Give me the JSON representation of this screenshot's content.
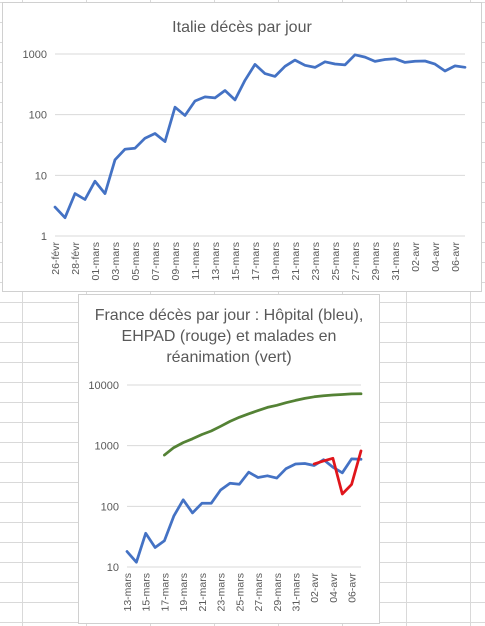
{
  "chart_data": [
    {
      "type": "line",
      "title": "Italie décès par jour",
      "yscale": "log",
      "ylim": [
        1,
        1000
      ],
      "yticks": [
        "1",
        "10",
        "100",
        "1000"
      ],
      "grid": true,
      "xtick_labels": [
        "26-févr",
        "28-févr",
        "01-mars",
        "03-mars",
        "05-mars",
        "07-mars",
        "09-mars",
        "11-mars",
        "13-mars",
        "15-mars",
        "17-mars",
        "19-mars",
        "21-mars",
        "23-mars",
        "25-mars",
        "27-mars",
        "29-mars",
        "31-mars",
        "02-avr",
        "04-avr",
        "06-avr"
      ],
      "x": [
        "26-févr",
        "27-févr",
        "28-févr",
        "29-févr",
        "01-mars",
        "02-mars",
        "03-mars",
        "04-mars",
        "05-mars",
        "06-mars",
        "07-mars",
        "08-mars",
        "09-mars",
        "10-mars",
        "11-mars",
        "12-mars",
        "13-mars",
        "14-mars",
        "15-mars",
        "16-mars",
        "17-mars",
        "18-mars",
        "19-mars",
        "20-mars",
        "21-mars",
        "22-mars",
        "23-mars",
        "24-mars",
        "25-mars",
        "26-mars",
        "27-mars",
        "28-mars",
        "29-mars",
        "30-mars",
        "31-mars",
        "01-avr",
        "02-avr",
        "03-avr",
        "04-avr",
        "05-avr",
        "06-avr",
        "07-avr"
      ],
      "series": [
        {
          "color": "#4472c4",
          "values": [
            3,
            2,
            5,
            4,
            8,
            5,
            18,
            27,
            28,
            41,
            49,
            36,
            133,
            97,
            168,
            196,
            189,
            250,
            175,
            368,
            675,
            475,
            427,
            627,
            793,
            651,
            601,
            743,
            683,
            662,
            969,
            889,
            756,
            812,
            837,
            727,
            760,
            766,
            681,
            525,
            636,
            604
          ]
        }
      ]
    },
    {
      "type": "line",
      "title": "France décès par jour : Hôpital (bleu),  EHPAD (rouge) et malades en réanimation (vert)",
      "yscale": "log",
      "ylim": [
        10,
        10000
      ],
      "yticks": [
        "10",
        "100",
        "1000",
        "10000"
      ],
      "grid": true,
      "xtick_labels": [
        "13-mars",
        "15-mars",
        "17-mars",
        "19-mars",
        "21-mars",
        "23-mars",
        "25-mars",
        "27-mars",
        "29-mars",
        "31-mars",
        "02-avr",
        "04-avr",
        "06-avr"
      ],
      "x": [
        "13-mars",
        "14-mars",
        "15-mars",
        "16-mars",
        "17-mars",
        "18-mars",
        "19-mars",
        "20-mars",
        "21-mars",
        "22-mars",
        "23-mars",
        "24-mars",
        "25-mars",
        "26-mars",
        "27-mars",
        "28-mars",
        "29-mars",
        "30-mars",
        "31-mars",
        "01-avr",
        "02-avr",
        "03-avr",
        "04-avr",
        "05-avr",
        "06-avr",
        "07-avr"
      ],
      "series": [
        {
          "color": "#4472c4",
          "values": [
            18,
            12,
            36,
            21,
            27,
            69,
            128,
            78,
            112,
            112,
            186,
            240,
            231,
            365,
            299,
            319,
            292,
            418,
            499,
            509,
            471,
            588,
            441,
            357,
            605,
            597
          ]
        },
        {
          "color": "#e0151b",
          "values": [
            null,
            null,
            null,
            null,
            null,
            null,
            null,
            null,
            null,
            null,
            null,
            null,
            null,
            null,
            null,
            null,
            null,
            null,
            null,
            null,
            500,
            560,
            620,
            160,
            230,
            820
          ]
        },
        {
          "color": "#548235",
          "values": [
            null,
            null,
            null,
            null,
            699,
            931,
            1122,
            1297,
            1525,
            1746,
            2082,
            2516,
            2935,
            3351,
            3787,
            4273,
            4632,
            5107,
            5565,
            6017,
            6399,
            6662,
            6838,
            6978,
            7131,
            7148
          ]
        }
      ]
    }
  ]
}
